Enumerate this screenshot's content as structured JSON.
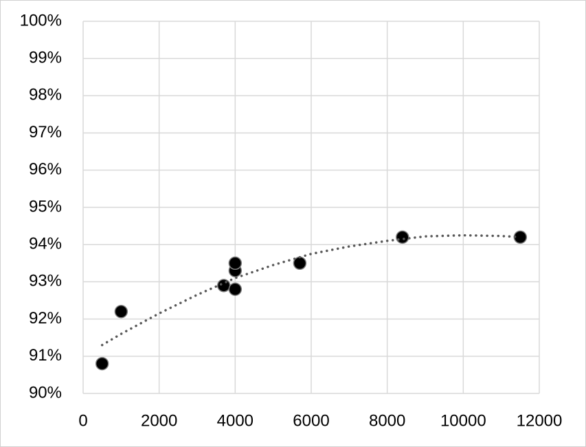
{
  "chart_data": {
    "type": "scatter",
    "xlim": [
      0,
      12000
    ],
    "xticks": [
      0,
      2000,
      4000,
      6000,
      8000,
      10000,
      12000
    ],
    "ylim": [
      90,
      100
    ],
    "yticks": [
      {
        "value": 90,
        "label": "90%"
      },
      {
        "value": 91,
        "label": "91%"
      },
      {
        "value": 92,
        "label": "92%"
      },
      {
        "value": 93,
        "label": "93%"
      },
      {
        "value": 94,
        "label": "94%"
      },
      {
        "value": 95,
        "label": "95%"
      },
      {
        "value": 96,
        "label": "96%"
      },
      {
        "value": 97,
        "label": "97%"
      },
      {
        "value": 98,
        "label": "98%"
      },
      {
        "value": 99,
        "label": "99%"
      },
      {
        "value": 100,
        "label": "100%"
      }
    ],
    "grid": true,
    "series": [
      {
        "color": "#000000",
        "style": "markers",
        "x": [
          500,
          1000,
          3700,
          4000,
          4000,
          4000,
          5700,
          8400,
          11500
        ],
        "values": [
          90.8,
          92.2,
          92.9,
          93.3,
          93.5,
          92.8,
          93.5,
          94.2,
          94.2
        ]
      },
      {
        "color": "#595959",
        "style": "dotted",
        "x": [
          500,
          1000,
          2000,
          3000,
          4000,
          5000,
          6000,
          7000,
          8000,
          9000,
          10000,
          11000,
          11500
        ],
        "values": [
          91.3,
          91.6,
          92.15,
          92.65,
          93.1,
          93.45,
          93.75,
          93.95,
          94.1,
          94.22,
          94.25,
          94.23,
          94.2
        ]
      }
    ]
  }
}
